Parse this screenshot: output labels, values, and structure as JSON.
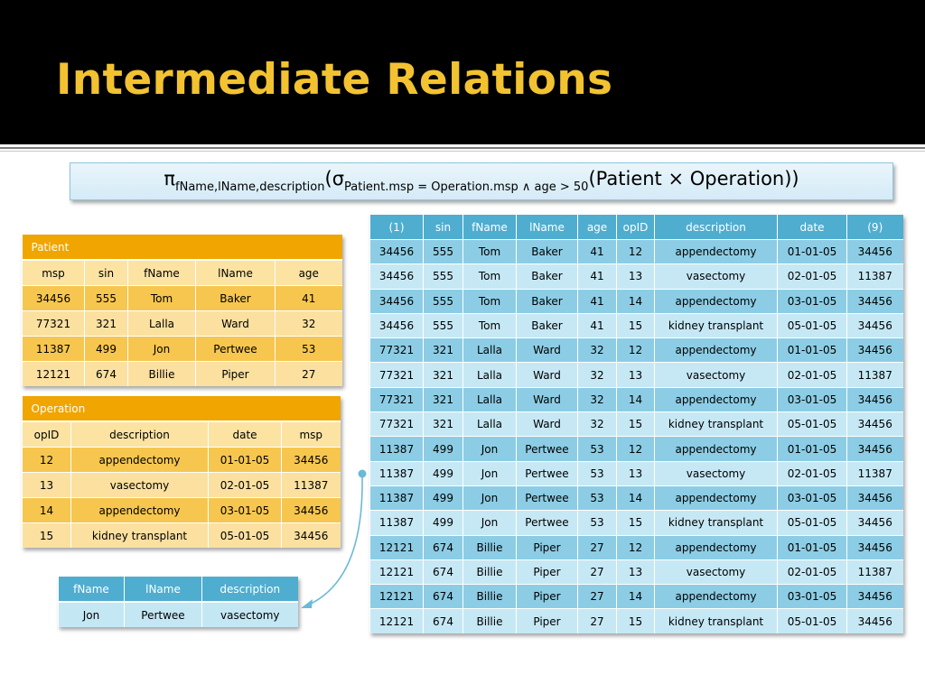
{
  "slide": {
    "title": "Intermediate Relations"
  },
  "formula": {
    "pi": "π",
    "pi_sub": "fName,lName,description",
    "open1": "(",
    "sigma": "σ",
    "sigma_sub": "Patient.msp = Operation.msp ∧ age > 50",
    "rest": "(Patient × Operation))"
  },
  "patient": {
    "caption": "Patient",
    "columns": [
      "msp",
      "sin",
      "fName",
      "lName",
      "age"
    ],
    "rows": [
      [
        "34456",
        "555",
        "Tom",
        "Baker",
        "41"
      ],
      [
        "77321",
        "321",
        "Lalla",
        "Ward",
        "32"
      ],
      [
        "11387",
        "499",
        "Jon",
        "Pertwee",
        "53"
      ],
      [
        "12121",
        "674",
        "Billie",
        "Piper",
        "27"
      ]
    ]
  },
  "operation": {
    "caption": "Operation",
    "columns": [
      "opID",
      "description",
      "date",
      "msp"
    ],
    "rows": [
      [
        "12",
        "appendectomy",
        "01-01-05",
        "34456"
      ],
      [
        "13",
        "vasectomy",
        "02-01-05",
        "11387"
      ],
      [
        "14",
        "appendectomy",
        "03-01-05",
        "34456"
      ],
      [
        "15",
        "kidney transplant",
        "05-01-05",
        "34456"
      ]
    ]
  },
  "result": {
    "columns": [
      "fName",
      "lName",
      "description"
    ],
    "rows": [
      [
        "Jon",
        "Pertwee",
        "vasectomy"
      ]
    ]
  },
  "product": {
    "columns": [
      "(1)",
      "sin",
      "fName",
      "lName",
      "age",
      "opID",
      "description",
      "date",
      "(9)"
    ],
    "rows": [
      [
        "34456",
        "555",
        "Tom",
        "Baker",
        "41",
        "12",
        "appendectomy",
        "01-01-05",
        "34456"
      ],
      [
        "34456",
        "555",
        "Tom",
        "Baker",
        "41",
        "13",
        "vasectomy",
        "02-01-05",
        "11387"
      ],
      [
        "34456",
        "555",
        "Tom",
        "Baker",
        "41",
        "14",
        "appendectomy",
        "03-01-05",
        "34456"
      ],
      [
        "34456",
        "555",
        "Tom",
        "Baker",
        "41",
        "15",
        "kidney transplant",
        "05-01-05",
        "34456"
      ],
      [
        "77321",
        "321",
        "Lalla",
        "Ward",
        "32",
        "12",
        "appendectomy",
        "01-01-05",
        "34456"
      ],
      [
        "77321",
        "321",
        "Lalla",
        "Ward",
        "32",
        "13",
        "vasectomy",
        "02-01-05",
        "11387"
      ],
      [
        "77321",
        "321",
        "Lalla",
        "Ward",
        "32",
        "14",
        "appendectomy",
        "03-01-05",
        "34456"
      ],
      [
        "77321",
        "321",
        "Lalla",
        "Ward",
        "32",
        "15",
        "kidney transplant",
        "05-01-05",
        "34456"
      ],
      [
        "11387",
        "499",
        "Jon",
        "Pertwee",
        "53",
        "12",
        "appendectomy",
        "01-01-05",
        "34456"
      ],
      [
        "11387",
        "499",
        "Jon",
        "Pertwee",
        "53",
        "13",
        "vasectomy",
        "02-01-05",
        "11387"
      ],
      [
        "11387",
        "499",
        "Jon",
        "Pertwee",
        "53",
        "14",
        "appendectomy",
        "03-01-05",
        "34456"
      ],
      [
        "11387",
        "499",
        "Jon",
        "Pertwee",
        "53",
        "15",
        "kidney transplant",
        "05-01-05",
        "34456"
      ],
      [
        "12121",
        "674",
        "Billie",
        "Piper",
        "27",
        "12",
        "appendectomy",
        "01-01-05",
        "34456"
      ],
      [
        "12121",
        "674",
        "Billie",
        "Piper",
        "27",
        "13",
        "vasectomy",
        "02-01-05",
        "11387"
      ],
      [
        "12121",
        "674",
        "Billie",
        "Piper",
        "27",
        "14",
        "appendectomy",
        "03-01-05",
        "34456"
      ],
      [
        "12121",
        "674",
        "Billie",
        "Piper",
        "27",
        "15",
        "kidney transplant",
        "05-01-05",
        "34456"
      ]
    ]
  },
  "colors": {
    "title": "#f2c230",
    "header_bg": "#000000",
    "orange_caption": "#f0a500",
    "orange_dark_row": "#f7c64e",
    "orange_light_row": "#fbe0a0",
    "blue_header": "#4fadd0",
    "blue_dark_row": "#8ccde5",
    "blue_light_row": "#c6e8f5",
    "arrow": "#6bb9d8"
  }
}
